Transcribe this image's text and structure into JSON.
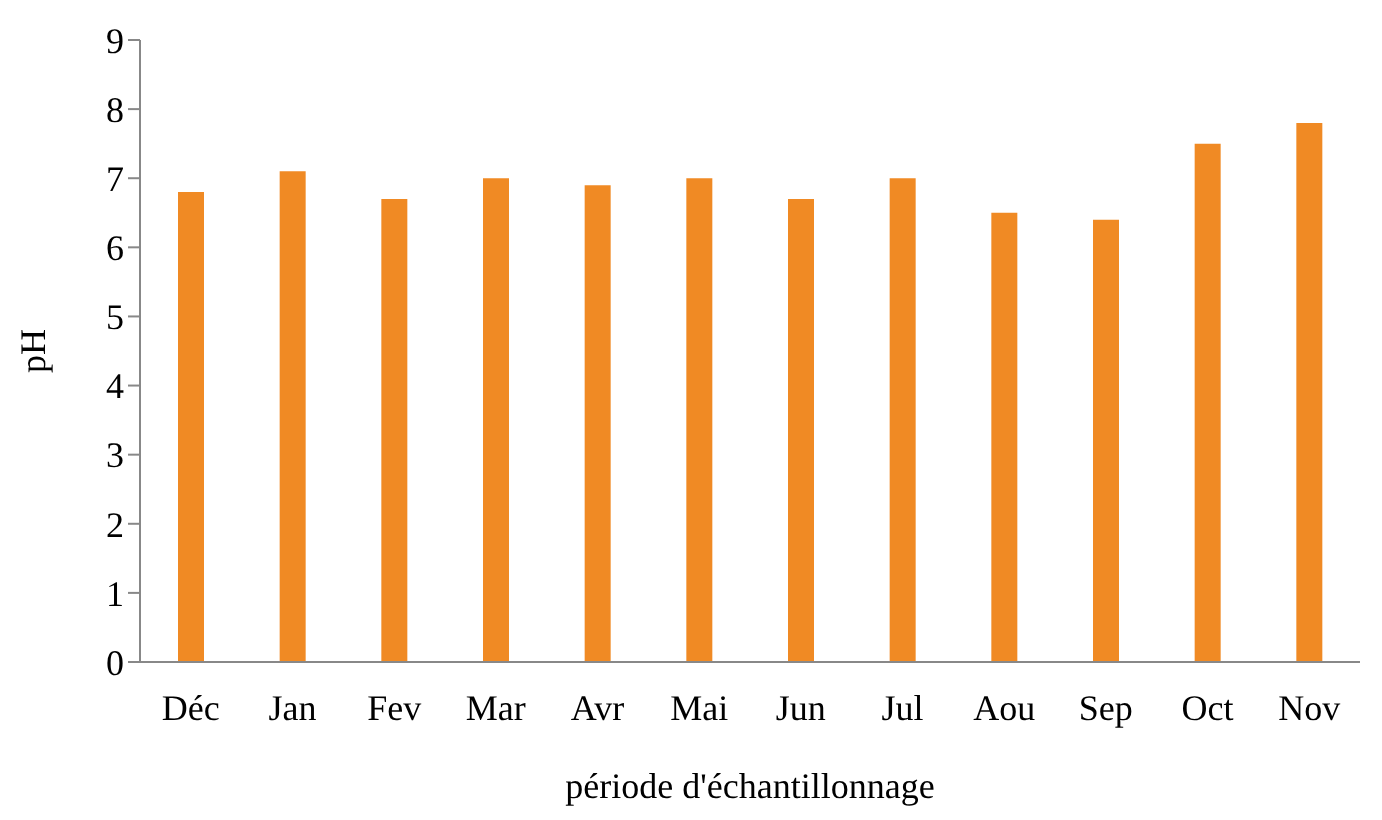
{
  "chart_data": {
    "type": "bar",
    "xlabel": "période d'échantillonnage",
    "ylabel": "pH",
    "categories": [
      "Déc",
      "Jan",
      "Fev",
      "Mar",
      "Avr",
      "Mai",
      "Jun",
      "Jul",
      "Aou",
      "Sep",
      "Oct",
      "Nov"
    ],
    "values": [
      6.8,
      7.1,
      6.7,
      7.0,
      6.9,
      7.0,
      6.7,
      7.0,
      6.5,
      6.4,
      7.5,
      7.8
    ],
    "color": "#f08a24",
    "ylim": [
      0,
      9
    ],
    "yticks": [
      0,
      1,
      2,
      3,
      4,
      5,
      6,
      7,
      8,
      9
    ],
    "grid": false,
    "legend": false
  }
}
